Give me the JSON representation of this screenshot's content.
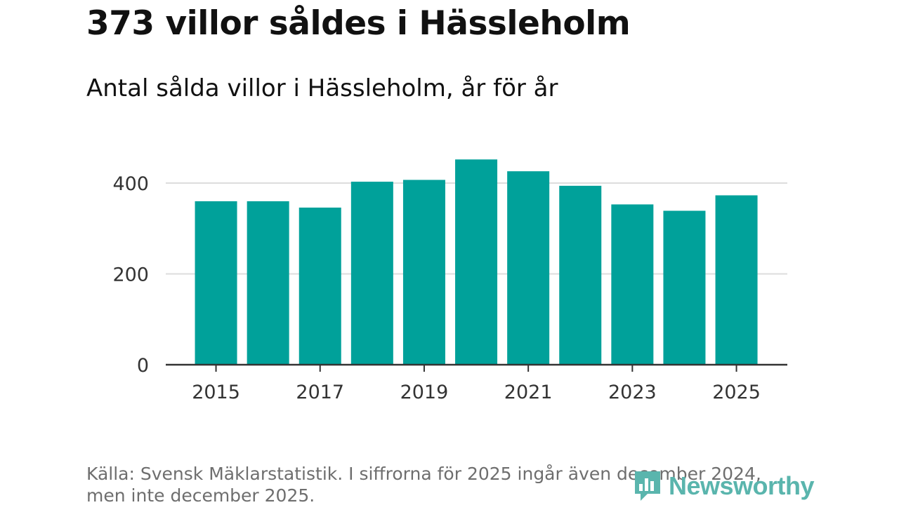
{
  "header": {
    "title": "373 villor såldes i Hässleholm",
    "subtitle": "Antal sålda villor i Hässleholm, år för år"
  },
  "chart_data": {
    "type": "bar",
    "categories": [
      "2015",
      "2016",
      "2017",
      "2018",
      "2019",
      "2020",
      "2021",
      "2022",
      "2023",
      "2024",
      "2025"
    ],
    "values": [
      360,
      360,
      346,
      403,
      407,
      452,
      426,
      394,
      353,
      339,
      373
    ],
    "xtick_labels": [
      "2015",
      "2017",
      "2019",
      "2021",
      "2023",
      "2025"
    ],
    "yticks": [
      0,
      200,
      400
    ],
    "ylim": [
      0,
      500
    ],
    "grid": true,
    "bar_color": "#00a19a",
    "gridline_color": "#dddddd",
    "axis_color": "#333333",
    "title": "",
    "xlabel": "",
    "ylabel": ""
  },
  "footer": {
    "source": "Källa: Svensk Mäklarstatistik. I siffrorna för 2025 ingår även december 2024, men inte december 2025."
  },
  "logo": {
    "text": "Newsworthy",
    "icon": "bar-chart-logo-icon",
    "color": "#5ab5ad"
  }
}
